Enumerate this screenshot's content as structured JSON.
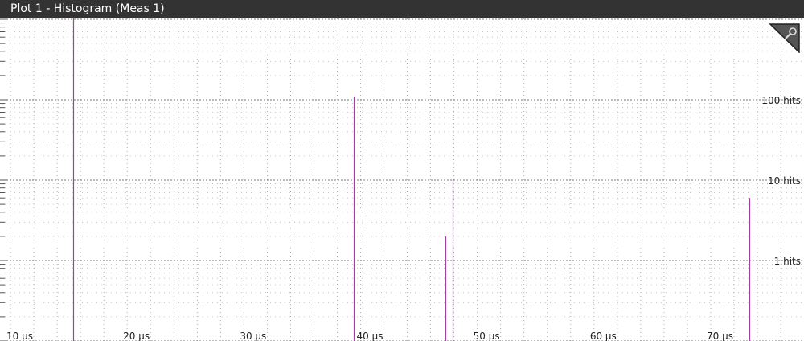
{
  "window": {
    "title": "Plot 1 - Histogram (Meas 1)"
  },
  "toolbar": {
    "zoom_icon": "magnifier-icon"
  },
  "chart_data": {
    "type": "bar",
    "title": "",
    "xlabel": "",
    "ylabel": "",
    "x_unit": "µs",
    "xlim": [
      10,
      77
    ],
    "y_scale": "log",
    "ylim": [
      0.07,
      1400
    ],
    "x_ticks": [
      10,
      20,
      30,
      40,
      50,
      60,
      70
    ],
    "x_tick_labels": [
      "10 µs",
      "20 µs",
      "30 µs",
      "40 µs",
      "50 µs",
      "60 µs",
      "70 µs"
    ],
    "y_ticks": [
      1,
      10,
      100
    ],
    "y_tick_labels": [
      "1 hits",
      "10 hits",
      "100 hits"
    ],
    "grid": true,
    "bar_color": "#a040a0",
    "series": [
      {
        "x": [
          15.4,
          39.4,
          47.3,
          47.9,
          73.3
        ],
        "values": [
          1200,
          110,
          2,
          10,
          6
        ]
      }
    ]
  }
}
